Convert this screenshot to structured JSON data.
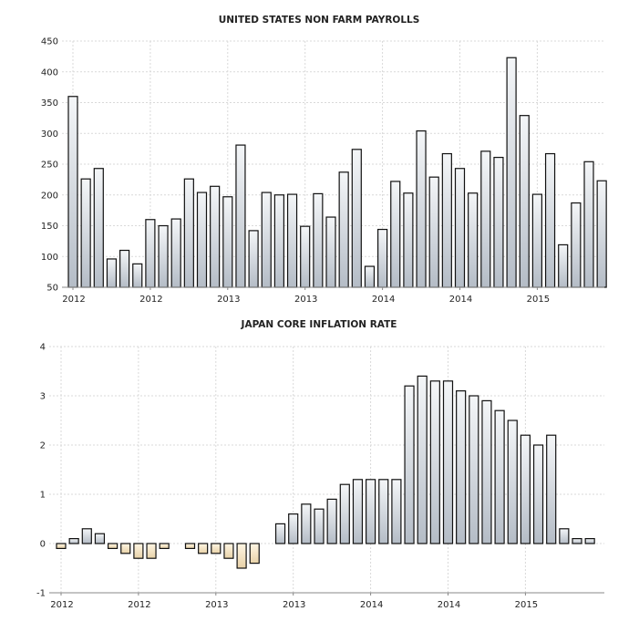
{
  "chart_data": [
    {
      "type": "bar",
      "title": "UNITED STATES NON FARM PAYROLLS",
      "ylim": [
        50,
        450
      ],
      "yticks": [
        50,
        100,
        150,
        200,
        250,
        300,
        350,
        400,
        450
      ],
      "xticks": [
        {
          "label": "2012",
          "index": 0
        },
        {
          "label": "2012",
          "index": 6
        },
        {
          "label": "2013",
          "index": 12
        },
        {
          "label": "2013",
          "index": 18
        },
        {
          "label": "2014",
          "index": 24
        },
        {
          "label": "2014",
          "index": 30
        },
        {
          "label": "2015",
          "index": 36
        }
      ],
      "grid": true,
      "colors": {
        "positive_top": "#f4f6f8",
        "positive_bottom": "#b4bcc6",
        "stroke": "#111111"
      },
      "values": [
        360,
        226,
        243,
        96,
        110,
        88,
        160,
        150,
        161,
        226,
        204,
        214,
        197,
        281,
        142,
        204,
        200,
        201,
        149,
        202,
        164,
        237,
        274,
        84,
        144,
        222,
        203,
        304,
        229,
        267,
        243,
        203,
        271,
        261,
        423,
        329,
        201,
        267,
        119,
        187,
        254,
        223
      ]
    },
    {
      "type": "bar",
      "title": "JAPAN CORE INFLATION RATE",
      "ylim": [
        -1,
        4
      ],
      "yticks": [
        -1,
        0,
        1,
        2,
        3,
        4
      ],
      "xticks": [
        {
          "label": "2012",
          "index": 0
        },
        {
          "label": "2012",
          "index": 6
        },
        {
          "label": "2013",
          "index": 12
        },
        {
          "label": "2013",
          "index": 18
        },
        {
          "label": "2014",
          "index": 24
        },
        {
          "label": "2014",
          "index": 30
        },
        {
          "label": "2015",
          "index": 36
        }
      ],
      "grid": true,
      "colors": {
        "positive_top": "#f4f6f8",
        "positive_bottom": "#b4bcc6",
        "negative_top": "#fff6e4",
        "negative_bottom": "#e8d2a8",
        "stroke": "#111111"
      },
      "values": [
        -0.1,
        0.1,
        0.3,
        0.2,
        -0.1,
        -0.2,
        -0.3,
        -0.3,
        -0.1,
        0,
        -0.1,
        -0.2,
        -0.2,
        -0.3,
        -0.5,
        -0.4,
        0,
        0.4,
        0.6,
        0.8,
        0.7,
        0.9,
        1.2,
        1.3,
        1.3,
        1.3,
        1.3,
        3.2,
        3.4,
        3.3,
        3.3,
        3.1,
        3.0,
        2.9,
        2.7,
        2.5,
        2.2,
        2.0,
        2.2,
        0.3,
        0.1,
        0.1
      ]
    }
  ]
}
